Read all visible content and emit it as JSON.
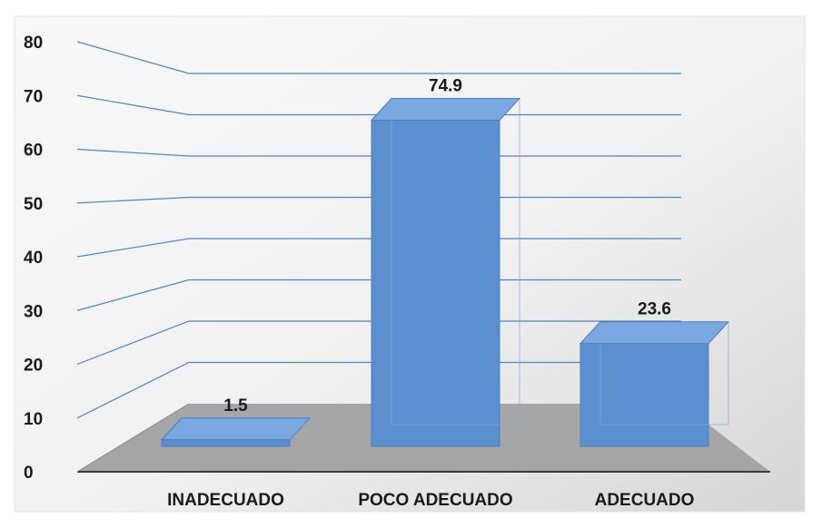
{
  "chart_data": {
    "type": "bar",
    "style": "3d",
    "categories": [
      "INADECUADO",
      "POCO ADECUADO",
      "ADECUADO"
    ],
    "values": [
      1.5,
      74.9,
      23.6
    ],
    "data_labels": [
      "1.5",
      "74.9",
      "23.6"
    ],
    "yticks": [
      "0",
      "10",
      "20",
      "30",
      "40",
      "50",
      "60",
      "70",
      "80"
    ],
    "ylim": [
      0,
      80
    ],
    "grid": true,
    "legend": "none",
    "colors": {
      "bar_front": "#5b8fd0",
      "bar_side": "#3f6fa8",
      "bar_top": "#7aa8e0",
      "bar_edge": "#4a7fc0",
      "gridline": "#4e84c4",
      "floor": "#a6a6a6",
      "axis": "#3a3a3a"
    }
  }
}
